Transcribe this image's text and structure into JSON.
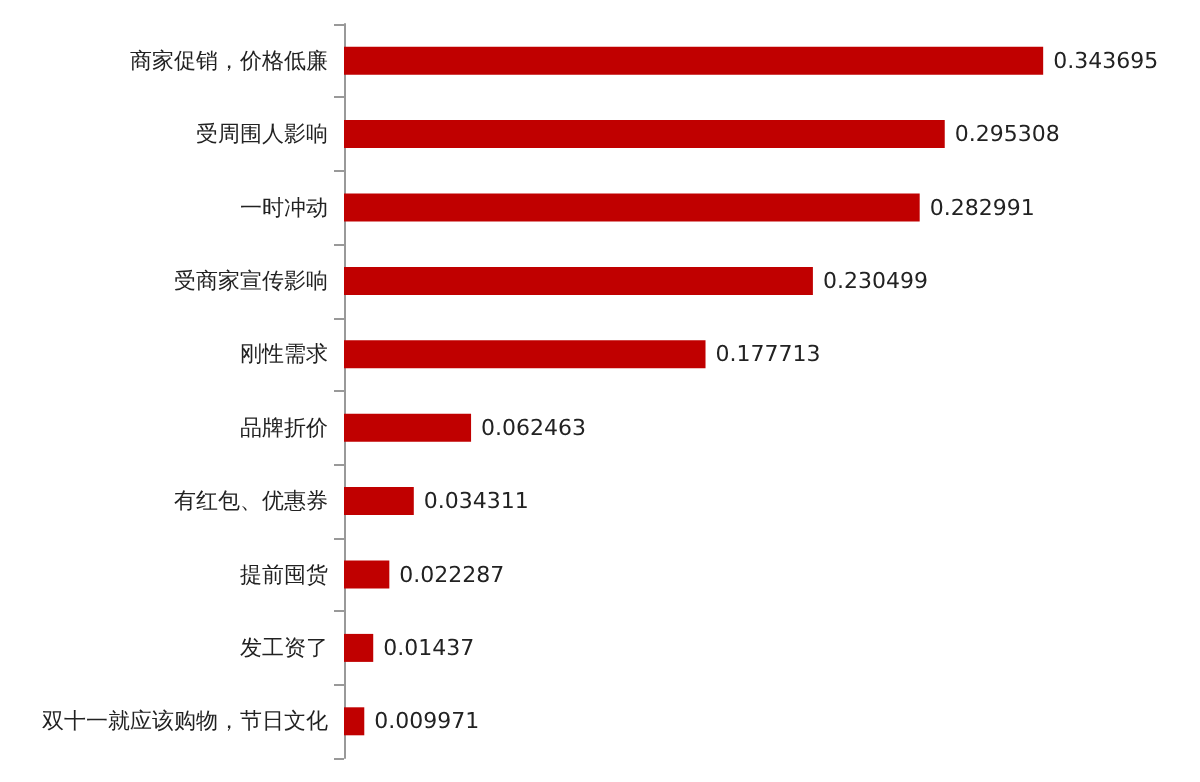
{
  "chart_data": {
    "type": "bar",
    "orientation": "horizontal",
    "categories": [
      "商家促销，价格低廉",
      "受周围人影响",
      "一时冲动",
      "受商家宣传影响",
      "刚性需求",
      "品牌折价",
      "有红包、优惠券",
      "提前囤货",
      "发工资了",
      "双十一就应该购物，节日文化"
    ],
    "values": [
      0.343695,
      0.295308,
      0.282991,
      0.230499,
      0.177713,
      0.062463,
      0.034311,
      0.022287,
      0.01437,
      0.009971
    ],
    "color": "#c00000",
    "data_labels": true
  }
}
